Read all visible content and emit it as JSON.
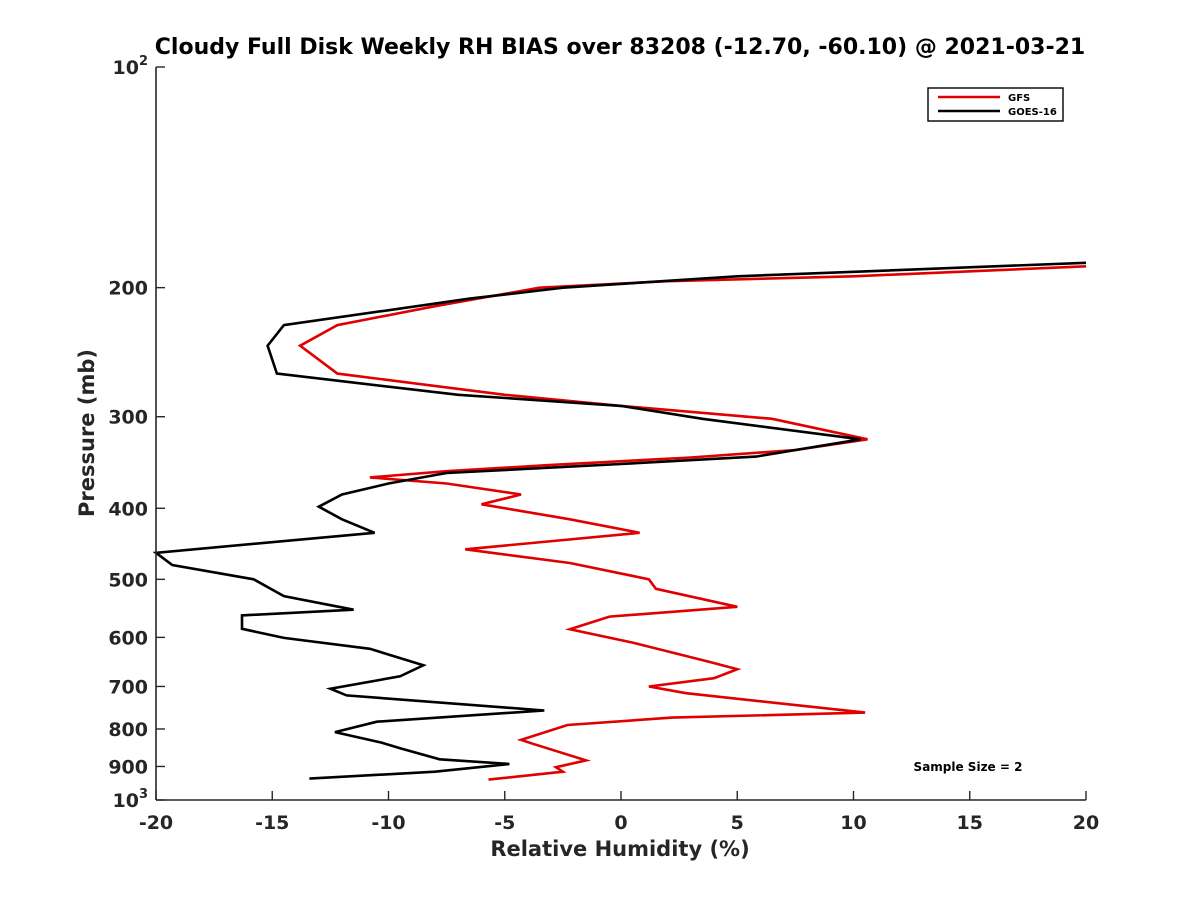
{
  "chart_data": {
    "type": "line",
    "title": "Cloudy Full Disk Weekly RH BIAS over 83208 (-12.70, -60.10) @ 2021-03-21",
    "xlabel": "Relative Humidity (%)",
    "ylabel": "Pressure (mb)",
    "xlim": [
      -20,
      20
    ],
    "ylim": [
      100,
      1000
    ],
    "yscale": "log",
    "y_direction": "reversed",
    "grid": false,
    "legend_position": "top-right",
    "x_ticks": [
      -20,
      -15,
      -10,
      -5,
      0,
      5,
      10,
      15,
      20
    ],
    "x_tick_labels": [
      "-20",
      "-15",
      "-10",
      "-5",
      "0",
      "5",
      "10",
      "15",
      "20"
    ],
    "y_tick_labels": [
      {
        "value": 100,
        "base": "10",
        "exp": "2"
      },
      {
        "value": 200,
        "text": "200"
      },
      {
        "value": 300,
        "text": "300"
      },
      {
        "value": 400,
        "text": "400"
      },
      {
        "value": 500,
        "text": "500"
      },
      {
        "value": 600,
        "text": "600"
      },
      {
        "value": 700,
        "text": "700"
      },
      {
        "value": 800,
        "text": "800"
      },
      {
        "value": 900,
        "text": "900"
      },
      {
        "value": 1000,
        "base": "10",
        "exp": "3"
      }
    ],
    "annotation": "Sample Size = 2",
    "series": [
      {
        "name": "GFS",
        "color": "#e00000",
        "points": [
          [
            20.0,
            187
          ],
          [
            10.0,
            193
          ],
          [
            2.0,
            196
          ],
          [
            -3.5,
            200
          ],
          [
            -8.0,
            212
          ],
          [
            -12.2,
            225
          ],
          [
            -13.8,
            240
          ],
          [
            -12.2,
            262
          ],
          [
            -5.0,
            280
          ],
          [
            0.0,
            290
          ],
          [
            6.5,
            302
          ],
          [
            10.6,
            322
          ],
          [
            7.5,
            333
          ],
          [
            3.0,
            341
          ],
          [
            -3.0,
            349
          ],
          [
            -7.5,
            356
          ],
          [
            -10.8,
            363
          ],
          [
            -7.5,
            370
          ],
          [
            -4.3,
            383
          ],
          [
            -6.0,
            395
          ],
          [
            -2.2,
            414
          ],
          [
            0.8,
            432
          ],
          [
            -6.7,
            455
          ],
          [
            -2.2,
            475
          ],
          [
            1.2,
            500
          ],
          [
            1.5,
            515
          ],
          [
            5.0,
            545
          ],
          [
            -0.5,
            562
          ],
          [
            -2.2,
            585
          ],
          [
            0.5,
            610
          ],
          [
            3.8,
            648
          ],
          [
            5.0,
            663
          ],
          [
            4.0,
            682
          ],
          [
            1.2,
            700
          ],
          [
            2.8,
            715
          ],
          [
            10.5,
            760
          ],
          [
            2.2,
            772
          ],
          [
            -2.3,
            790
          ],
          [
            -4.3,
            828
          ],
          [
            -3.8,
            838
          ],
          [
            -1.5,
            883
          ],
          [
            -2.8,
            902
          ],
          [
            -2.5,
            915
          ],
          [
            -5.7,
            938
          ]
        ]
      },
      {
        "name": "GOES-16",
        "color": "#000000",
        "points": [
          [
            20.0,
            185
          ],
          [
            5.0,
            193
          ],
          [
            -2.5,
            200
          ],
          [
            -6.5,
            207
          ],
          [
            -14.5,
            225
          ],
          [
            -15.2,
            240
          ],
          [
            -14.8,
            262
          ],
          [
            -7.0,
            280
          ],
          [
            0.0,
            290
          ],
          [
            3.5,
            302
          ],
          [
            10.3,
            322
          ],
          [
            5.8,
            340
          ],
          [
            0.0,
            348
          ],
          [
            -7.5,
            358
          ],
          [
            -10.0,
            370
          ],
          [
            -12.0,
            383
          ],
          [
            -13.0,
            398
          ],
          [
            -12.0,
            414
          ],
          [
            -10.6,
            432
          ],
          [
            -20.0,
            460
          ],
          [
            -19.3,
            478
          ],
          [
            -15.8,
            500
          ],
          [
            -14.5,
            527
          ],
          [
            -11.5,
            550
          ],
          [
            -16.3,
            560
          ],
          [
            -16.3,
            584
          ],
          [
            -14.5,
            601
          ],
          [
            -10.8,
            622
          ],
          [
            -8.5,
            655
          ],
          [
            -9.5,
            678
          ],
          [
            -12.5,
            705
          ],
          [
            -11.8,
            720
          ],
          [
            -3.3,
            755
          ],
          [
            -10.5,
            782
          ],
          [
            -12.3,
            808
          ],
          [
            -10.3,
            835
          ],
          [
            -9.5,
            850
          ],
          [
            -7.8,
            880
          ],
          [
            -4.8,
            893
          ],
          [
            -8.0,
            915
          ],
          [
            -13.4,
            935
          ]
        ]
      }
    ]
  }
}
